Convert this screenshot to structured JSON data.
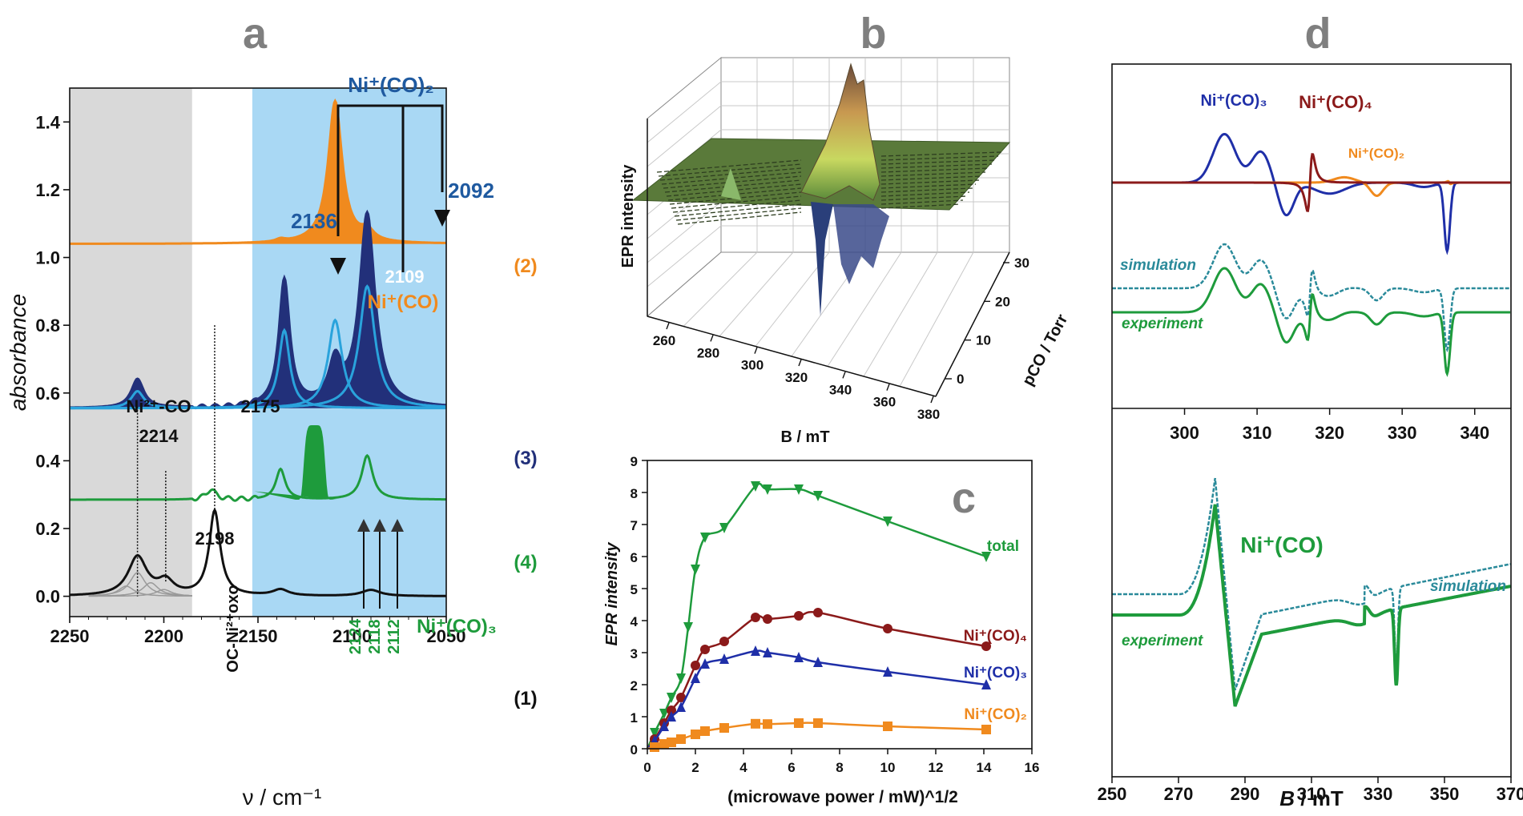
{
  "panels": {
    "a": "a",
    "b": "b",
    "c": "c",
    "d": "d"
  },
  "colors": {
    "orange": "#f08a1e",
    "navy": "#22307a",
    "lightblue": "#2aa3dc",
    "green": "#1e9b3c",
    "black": "#111111",
    "darkred": "#8b1a1a",
    "blue": "#1f2fa8",
    "teal": "#2a8a9a",
    "gray_band": "#d9d9d9",
    "blue_band": "#a9d8f4",
    "number_blue": "#1f5aa0"
  },
  "chart_data": [
    {
      "id": "a",
      "type": "line",
      "title": "a",
      "xlabel": "ν / cm⁻¹",
      "ylabel": "absorbance",
      "xlim": [
        2250,
        2050
      ],
      "ylim": [
        -0.06,
        1.5
      ],
      "xticks": [
        2250,
        2200,
        2150,
        2100,
        2050
      ],
      "xtick_labels": [
        "2250",
        "2200",
        "2150",
        "2100",
        "2050"
      ],
      "yticks": [
        0.0,
        0.2,
        0.4,
        0.6,
        0.8,
        1.0,
        1.2,
        1.4
      ],
      "ytick_labels": [
        "0.0",
        "0.2",
        "0.4",
        "0.6",
        "0.8",
        "1.0",
        "1.2",
        "1.4"
      ],
      "shaded_regions": [
        {
          "from": 2250,
          "to": 2185,
          "color": "#d9d9d9"
        },
        {
          "from": 2153,
          "to": 2050,
          "color": "#a9d8f4"
        }
      ],
      "series": [
        {
          "name": "(1)",
          "baseline": 0.0,
          "color": "#111111",
          "peaks": [
            [
              2214,
              0.115,
              6
            ],
            [
              2199,
              0.04,
              5
            ],
            [
              2173,
              0.25,
              3.5
            ],
            [
              2138,
              0.018,
              5
            ],
            [
              2090,
              0.018,
              6
            ]
          ]
        },
        {
          "name": "(2)",
          "baseline": 1.04,
          "color": "#f08a1e",
          "filled": true,
          "peaks": [
            [
              2109,
              0.42,
              4.5
            ],
            [
              2138,
              0.008,
              3
            ],
            [
              2092,
              0.03,
              4
            ]
          ]
        },
        {
          "name": "(3)",
          "baseline": 0.555,
          "color": "#22307a",
          "filled": true,
          "peaks": [
            [
              2214,
              0.085,
              4
            ],
            [
              2136,
              0.375,
              3.5
            ],
            [
              2109,
              0.12,
              4
            ],
            [
              2092,
              0.57,
              5
            ]
          ]
        },
        {
          "name": "(4)",
          "baseline": 0.285,
          "color": "#1e9b3c",
          "peaks": [
            [
              2175,
              0.03,
              3
            ],
            [
              2138,
              0.09,
              3
            ],
            [
              2092,
              0.13,
              3.5
            ]
          ]
        }
      ],
      "labels": {
        "s2": "(2)",
        "s3": "(3)",
        "s4": "(4)",
        "s1": "(1)",
        "ni_co2": "Ni⁺(CO)₂",
        "ni_co": "Ni⁺(CO)",
        "ni_co3": "Ni⁺(CO)₃",
        "ni2_co": "Ni²⁺-CO",
        "oxo": "OC-Ni²⁺oxo",
        "n2136": "2136",
        "n2092": "2092",
        "n2109": "2109",
        "n2214": "2214",
        "n2175": "2175",
        "n2198": "2198",
        "n2124": "2124",
        "n2118": "2118",
        "n2112": "2112"
      }
    },
    {
      "id": "b",
      "type": "surface",
      "title": "b",
      "xlabel": "B / mT",
      "ylabel": "pCO / Torr",
      "zlabel": "EPR intensity",
      "xticks": [
        "260",
        "280",
        "300",
        "320",
        "340",
        "360",
        "380"
      ],
      "yticks": [
        "0",
        "10",
        "20",
        "30"
      ]
    },
    {
      "id": "c",
      "type": "scatter",
      "title": "c",
      "xlabel": "(microwave power / mW)^1/2",
      "ylabel": "EPR intensity",
      "xlim": [
        0,
        16
      ],
      "ylim": [
        0,
        9
      ],
      "xticks": [
        0,
        2,
        4,
        6,
        8,
        10,
        12,
        14,
        16
      ],
      "yticks": [
        0,
        1,
        2,
        3,
        4,
        5,
        6,
        7,
        8,
        9
      ],
      "series": [
        {
          "name": "total",
          "color": "#1e9b3c",
          "marker": "triangle-down",
          "x": [
            0.3,
            0.7,
            1.0,
            1.4,
            1.7,
            2.0,
            2.4,
            3.2,
            4.5,
            5.0,
            6.3,
            7.1,
            10.0,
            14.1
          ],
          "y": [
            0.5,
            1.1,
            1.6,
            2.2,
            3.8,
            5.6,
            6.6,
            6.9,
            8.2,
            8.1,
            8.1,
            7.9,
            7.1,
            6.0
          ]
        },
        {
          "name": "Ni⁺(CO)₄",
          "color": "#8b1a1a",
          "marker": "circle",
          "x": [
            0.3,
            0.7,
            1.0,
            1.4,
            2.0,
            2.4,
            3.2,
            4.5,
            5.0,
            6.3,
            7.1,
            10.0,
            14.1
          ],
          "y": [
            0.3,
            0.8,
            1.2,
            1.6,
            2.6,
            3.1,
            3.35,
            4.1,
            4.05,
            4.15,
            4.25,
            3.75,
            3.2
          ]
        },
        {
          "name": "Ni⁺(CO)₃",
          "color": "#1f2fa8",
          "marker": "triangle-up",
          "x": [
            0.3,
            0.7,
            1.0,
            1.4,
            2.0,
            2.4,
            3.2,
            4.5,
            5.0,
            6.3,
            7.1,
            10.0,
            14.1
          ],
          "y": [
            0.25,
            0.7,
            1.0,
            1.3,
            2.2,
            2.65,
            2.8,
            3.05,
            3.0,
            2.85,
            2.7,
            2.4,
            2.0
          ]
        },
        {
          "name": "Ni⁺(CO)₂",
          "color": "#f08a1e",
          "marker": "square",
          "x": [
            0.3,
            0.7,
            1.0,
            1.4,
            2.0,
            2.4,
            3.2,
            4.5,
            5.0,
            6.3,
            7.1,
            10.0,
            14.1
          ],
          "y": [
            0.05,
            0.15,
            0.2,
            0.3,
            0.45,
            0.55,
            0.65,
            0.78,
            0.77,
            0.8,
            0.8,
            0.7,
            0.6
          ]
        }
      ],
      "labels": {
        "total": "total",
        "co4": "Ni⁺(CO)₄",
        "co3": "Ni⁺(CO)₃",
        "co2": "Ni⁺(CO)₂"
      }
    },
    {
      "id": "d",
      "type": "line",
      "title": "d",
      "xlabel": "B / mT",
      "top": {
        "xticks": [
          300,
          310,
          320,
          330,
          340
        ],
        "xtick_labels": [
          "300",
          "310",
          "320",
          "330",
          "340"
        ],
        "xlim": [
          290,
          345
        ],
        "labels": {
          "co3": "Ni⁺(CO)₃",
          "co4": "Ni⁺(CO)₄",
          "co2": "Ni⁺(CO)₂",
          "simulation": "simulation",
          "experiment": "experiment"
        }
      },
      "bottom": {
        "xticks": [
          250,
          270,
          290,
          310,
          330,
          350,
          370
        ],
        "xtick_labels": [
          "250",
          "270",
          "290",
          "310",
          "330",
          "350",
          "370"
        ],
        "xlim": [
          250,
          370
        ],
        "labels": {
          "species": "Ni⁺(CO)",
          "simulation": "simulation",
          "experiment": "experiment"
        }
      }
    }
  ]
}
